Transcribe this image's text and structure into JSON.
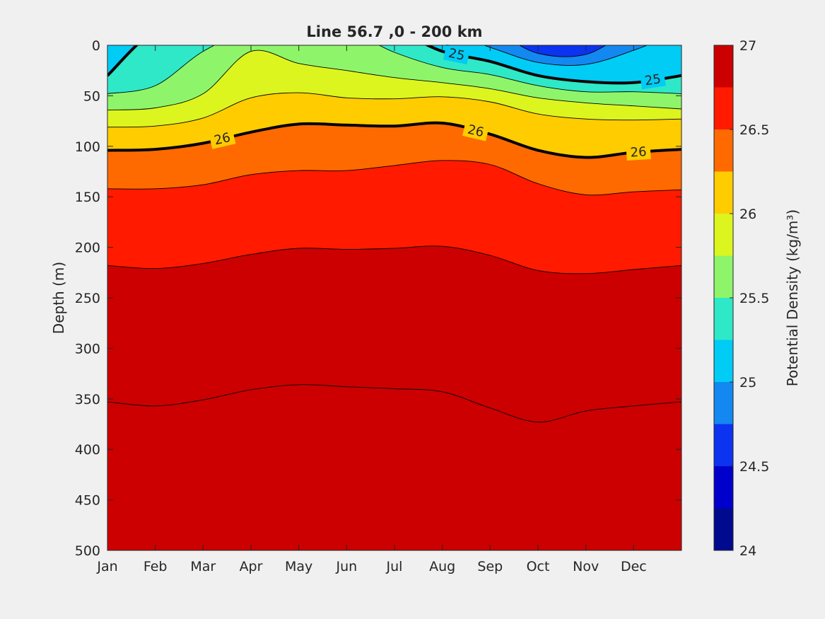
{
  "chart_data": {
    "type": "contourf",
    "title": "Line 56.7 ,0 - 200 km",
    "xlabel": "",
    "ylabel": "Depth (m)",
    "colorbar_label": "Potential Density (kg/m³)",
    "x_categories": [
      "Jan",
      "Feb",
      "Mar",
      "Apr",
      "May",
      "Jun",
      "Jul",
      "Aug",
      "Sep",
      "Oct",
      "Nov",
      "Dec"
    ],
    "x_range": [
      1,
      13
    ],
    "y_ticks": [
      0,
      50,
      100,
      150,
      200,
      250,
      300,
      350,
      400,
      450,
      500
    ],
    "ylim": [
      0,
      500
    ],
    "y_reversed": true,
    "colorbar": {
      "range": [
        24,
        27
      ],
      "step": 0.25,
      "tick_values": [
        24,
        24.5,
        25,
        25.5,
        26,
        26.5,
        27
      ],
      "tick_labels": [
        "24",
        "24.5",
        "25",
        "25.5",
        "26",
        "26.5",
        "27"
      ],
      "colors": [
        "#000a8f",
        "#0000cd",
        "#0b33f0",
        "#1388f0",
        "#00ccf5",
        "#2ee8c8",
        "#8ef56a",
        "#dcf51f",
        "#ffcc00",
        "#ff6a00",
        "#ff1a00",
        "#cc0000"
      ]
    },
    "months": [
      1,
      2,
      3,
      4,
      5,
      6,
      7,
      8,
      9,
      10,
      11,
      12,
      13
    ],
    "isopycnal_depths": [
      {
        "density": 24.5,
        "depths": [
          null,
          null,
          null,
          null,
          null,
          null,
          null,
          null,
          null,
          8,
          9,
          null,
          null
        ]
      },
      {
        "density": 24.75,
        "depths": [
          null,
          null,
          null,
          null,
          null,
          null,
          null,
          null,
          2,
          17,
          19,
          5,
          null
        ]
      },
      {
        "density": 25.0,
        "depths": [
          30,
          null,
          null,
          null,
          null,
          null,
          null,
          6,
          16,
          30,
          36,
          37,
          30
        ]
      },
      {
        "density": 25.25,
        "depths": [
          48,
          40,
          6,
          null,
          null,
          null,
          7,
          22,
          29,
          40,
          46,
          46,
          48
        ]
      },
      {
        "density": 25.5,
        "depths": [
          64,
          62,
          48,
          6,
          18,
          25,
          32,
          37,
          43,
          52,
          57,
          60,
          63
        ]
      },
      {
        "density": 25.75,
        "depths": [
          81,
          80,
          72,
          52,
          47,
          52,
          53,
          51,
          56,
          68,
          73,
          74,
          73
        ]
      },
      {
        "density": 26.0,
        "depths": [
          104,
          103,
          97,
          86,
          78,
          79,
          80,
          77,
          88,
          104,
          111,
          106,
          103
        ]
      },
      {
        "density": 26.25,
        "depths": [
          142,
          142,
          138,
          128,
          124,
          124,
          119,
          114,
          118,
          137,
          148,
          145,
          143
        ]
      },
      {
        "density": 26.5,
        "depths": [
          218,
          221,
          216,
          207,
          201,
          202,
          201,
          199,
          208,
          223,
          226,
          222,
          218
        ]
      },
      {
        "density": 26.75,
        "depths": [
          353,
          357,
          351,
          341,
          336,
          338,
          340,
          343,
          359,
          373,
          362,
          357,
          353
        ]
      }
    ],
    "labeled_contours": [
      {
        "density": 25,
        "label": "25"
      },
      {
        "density": 26,
        "label": "26"
      }
    ]
  }
}
